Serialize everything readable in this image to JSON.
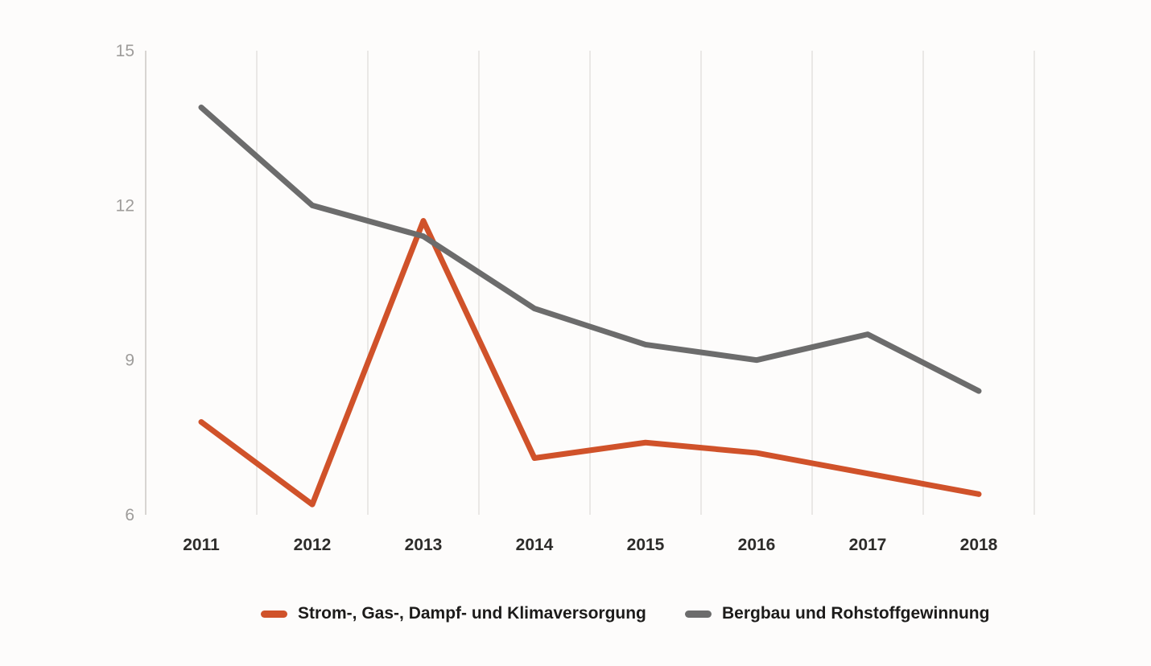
{
  "chart_data": {
    "type": "line",
    "categories": [
      "2011",
      "2012",
      "2013",
      "2014",
      "2015",
      "2016",
      "2017",
      "2018"
    ],
    "series": [
      {
        "name": "Strom-, Gas-, Dampf- und Klimaversorgung",
        "color": "#d0522a",
        "values": [
          7.8,
          6.2,
          11.7,
          7.1,
          7.4,
          7.2,
          6.8,
          6.4
        ]
      },
      {
        "name": "Bergbau und Rohstoffgewinnung",
        "color": "#6c6c6c",
        "values": [
          13.9,
          12.0,
          11.4,
          10.0,
          9.3,
          9.0,
          9.5,
          8.4
        ]
      }
    ],
    "y_ticks": [
      15,
      12,
      9,
      6
    ],
    "ylim": [
      6,
      15
    ],
    "grid": "vertical-only",
    "legend_position": "bottom",
    "colors": {
      "background": "#fdfcfb",
      "gridline": "#eae8e6",
      "axis_line": "#d8d5d2",
      "y_tick_text": "#9e9c9a",
      "x_tick_text": "#2d2c2a",
      "legend_text": "#1c1b1a"
    }
  }
}
